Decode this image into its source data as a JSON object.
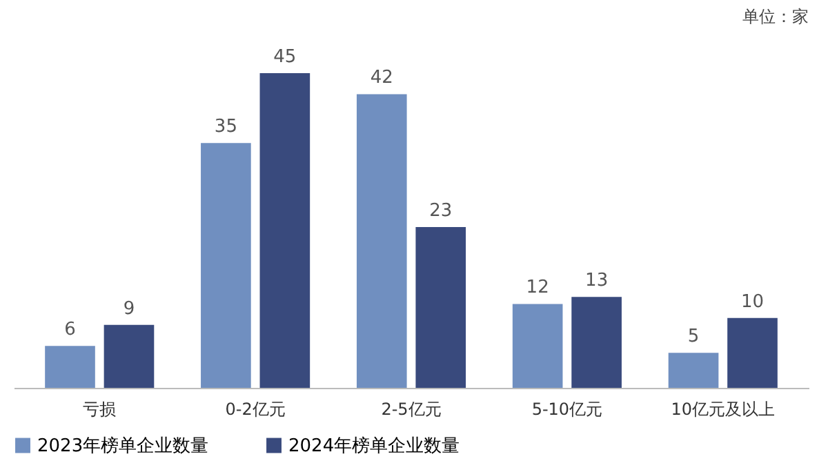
{
  "chart_data": {
    "type": "bar",
    "annotations": [
      "单位：家"
    ],
    "categories": [
      "亏损",
      "0-2亿元",
      "2-5亿元",
      "5-10亿元",
      "10亿元及以上"
    ],
    "series": [
      {
        "name": "2023年榜单企业数量",
        "color": "#708fc0",
        "values": [
          6,
          35,
          42,
          12,
          5
        ]
      },
      {
        "name": "2024年榜单企业数量",
        "color": "#394a7d",
        "values": [
          9,
          45,
          23,
          13,
          10
        ]
      }
    ],
    "data_labels": true,
    "legend": "bottom",
    "grid": false
  }
}
